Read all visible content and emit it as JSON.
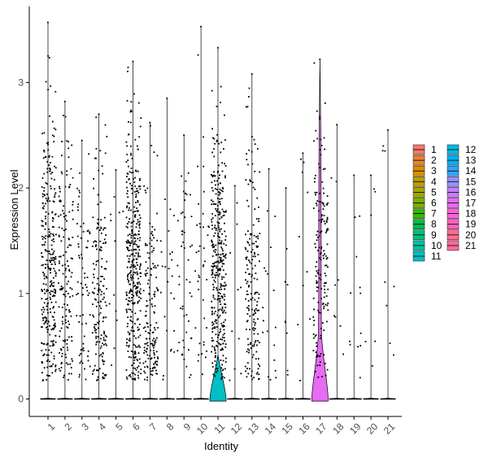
{
  "chart_data": {
    "type": "violin",
    "xlabel": "Identity",
    "ylabel": "Expression Level",
    "ylim": [
      -0.15,
      3.7
    ],
    "yticks": [
      0,
      1,
      2,
      3
    ],
    "grid": false,
    "legend_position": "right",
    "categories": [
      "1",
      "2",
      "3",
      "4",
      "5",
      "6",
      "7",
      "8",
      "9",
      "10",
      "11",
      "12",
      "13",
      "14",
      "15",
      "16",
      "17",
      "18",
      "19",
      "20",
      "21"
    ],
    "colors": [
      "#F8766D",
      "#EA8331",
      "#D89000",
      "#C09B00",
      "#A3A500",
      "#7CAE00",
      "#39B600",
      "#00BB4E",
      "#00BF7D",
      "#00C1A3",
      "#00BFC4",
      "#00BAE0",
      "#00B0F6",
      "#35A2FF",
      "#9590FF",
      "#C77CFF",
      "#E76BF3",
      "#FA62DB",
      "#FF62BC",
      "#FF6C91",
      "#FF6A98"
    ],
    "series": [
      {
        "name": "1",
        "max": 3.57,
        "nonzero_points": 320,
        "median_nonzero": 1.3
      },
      {
        "name": "2",
        "max": 2.82,
        "nonzero_points": 150,
        "median_nonzero": 1.2
      },
      {
        "name": "3",
        "max": 2.45,
        "nonzero_points": 70,
        "median_nonzero": 1.0
      },
      {
        "name": "4",
        "max": 2.7,
        "nonzero_points": 170,
        "median_nonzero": 0.9
      },
      {
        "name": "5",
        "max": 2.17,
        "nonzero_points": 12,
        "median_nonzero": 1.2
      },
      {
        "name": "6",
        "max": 3.2,
        "nonzero_points": 380,
        "median_nonzero": 1.3
      },
      {
        "name": "7",
        "max": 2.62,
        "nonzero_points": 160,
        "median_nonzero": 0.8
      },
      {
        "name": "8",
        "max": 2.85,
        "nonzero_points": 25,
        "median_nonzero": 1.1
      },
      {
        "name": "9",
        "max": 2.5,
        "nonzero_points": 50,
        "median_nonzero": 1.0
      },
      {
        "name": "10",
        "max": 3.53,
        "nonzero_points": 40,
        "median_nonzero": 1.1
      },
      {
        "name": "11",
        "max": 3.33,
        "nonzero_points": 370,
        "median_nonzero": 1.3
      },
      {
        "name": "12",
        "max": 2.02,
        "nonzero_points": 10,
        "median_nonzero": 1.0
      },
      {
        "name": "13",
        "max": 3.08,
        "nonzero_points": 180,
        "median_nonzero": 1.1
      },
      {
        "name": "14",
        "max": 2.18,
        "nonzero_points": 18,
        "median_nonzero": 0.9
      },
      {
        "name": "15",
        "max": 2.0,
        "nonzero_points": 8,
        "median_nonzero": 1.0
      },
      {
        "name": "16",
        "max": 2.33,
        "nonzero_points": 10,
        "median_nonzero": 1.2
      },
      {
        "name": "17",
        "max": 3.22,
        "nonzero_points": 170,
        "median_nonzero": 1.4
      },
      {
        "name": "18",
        "max": 2.6,
        "nonzero_points": 8,
        "median_nonzero": 1.2
      },
      {
        "name": "19",
        "max": 2.12,
        "nonzero_points": 12,
        "median_nonzero": 0.8
      },
      {
        "name": "20",
        "max": 2.12,
        "nonzero_points": 6,
        "median_nonzero": 1.3
      },
      {
        "name": "21",
        "max": 2.55,
        "nonzero_points": 8,
        "median_nonzero": 1.5
      }
    ]
  }
}
